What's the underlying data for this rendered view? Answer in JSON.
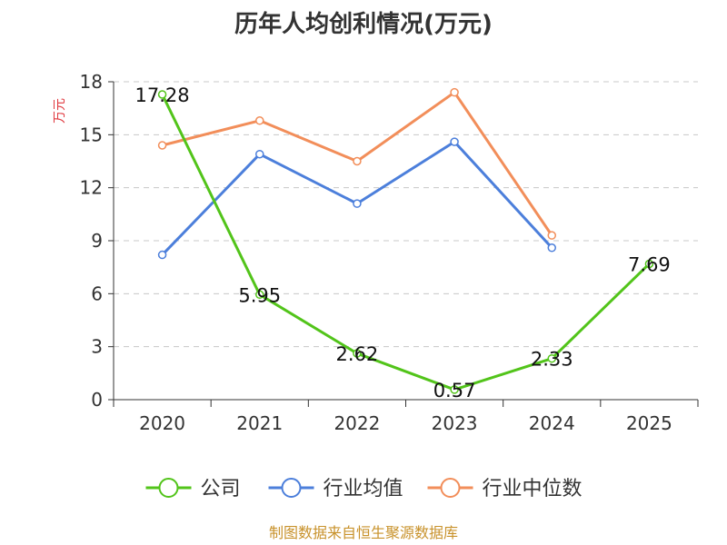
{
  "chart_data": {
    "type": "line",
    "title": "历年人均创利情况(万元)",
    "ylabel": "万元",
    "xlabel": "",
    "categories": [
      "2020",
      "2021",
      "2022",
      "2023",
      "2024",
      "2025"
    ],
    "ylim": [
      0,
      18
    ],
    "yticks": [
      0,
      3,
      6,
      9,
      12,
      15,
      18
    ],
    "grid": true,
    "legend_position": "bottom",
    "series": [
      {
        "name": "公司",
        "color": "#52c41a",
        "values": [
          17.28,
          5.95,
          2.62,
          0.57,
          2.33,
          7.69
        ],
        "labels": [
          "17.28",
          "5.95",
          "2.62",
          "0.57",
          "2.33",
          "7.69"
        ]
      },
      {
        "name": "行业均值",
        "color": "#4c7fdb",
        "values": [
          8.2,
          13.9,
          11.1,
          14.6,
          8.6,
          null
        ]
      },
      {
        "name": "行业中位数",
        "color": "#f28e5a",
        "values": [
          14.4,
          15.8,
          13.5,
          17.4,
          9.3,
          null
        ]
      }
    ]
  },
  "source": "制图数据来自恒生聚源数据库"
}
